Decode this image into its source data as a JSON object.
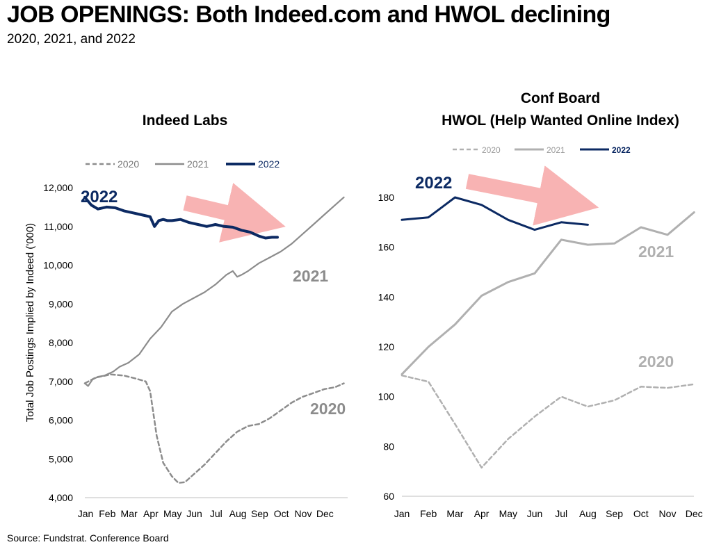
{
  "title": "JOB OPENINGS: Both Indeed.com and HWOL declining",
  "subtitle": "2020, 2021, and 2022",
  "source": "Source: Fundstrat. Conference Board",
  "colors": {
    "y2020": "#8c8c8c",
    "y2021": "#8c8c8c",
    "y2022": "#0c2a63",
    "arrow": "#f8b3b3",
    "y2020_hwol": "#b0b0b0",
    "y2021_hwol": "#b0b0b0"
  },
  "chart_data": [
    {
      "type": "line",
      "title": "Indeed Labs",
      "ylabel": "Total Job Postings Implied by Indeed ('000)",
      "ylim": [
        4000,
        12000
      ],
      "yticks": [
        "12,000",
        "11,000",
        "10,000",
        "9,000",
        "8,000",
        "7,000",
        "6,000",
        "5,000",
        "4,000"
      ],
      "ytick_values": [
        12000,
        11000,
        10000,
        9000,
        8000,
        7000,
        6000,
        5000,
        4000
      ],
      "months": [
        "Jan",
        "Feb",
        "Mar",
        "Apr",
        "May",
        "Jun",
        "Jul",
        "Aug",
        "Sep",
        "Oct",
        "Nov",
        "Dec"
      ],
      "legend": [
        "2020",
        "2021",
        "2022"
      ],
      "annotations": {
        "a2022": "2022",
        "a2021": "2021",
        "a2020": "2020"
      },
      "series": [
        {
          "name": "2020",
          "style": "dashed",
          "x": [
            0,
            0.5,
            1.2,
            1.8,
            2.3,
            2.8,
            3.0,
            3.3,
            3.6,
            4.0,
            4.3,
            4.6,
            5.0,
            5.5,
            6.0,
            6.5,
            7.0,
            7.5,
            8.0,
            8.5,
            9.0,
            9.5,
            10.0,
            10.5,
            11.0,
            11.5,
            11.9
          ],
          "y": [
            6950,
            7100,
            7180,
            7150,
            7080,
            7000,
            6750,
            5600,
            4900,
            4550,
            4380,
            4400,
            4600,
            4850,
            5150,
            5450,
            5700,
            5850,
            5900,
            6050,
            6250,
            6450,
            6600,
            6700,
            6800,
            6850,
            6950
          ]
        },
        {
          "name": "2021",
          "style": "solid",
          "x": [
            0,
            0.15,
            0.35,
            0.6,
            0.9,
            1.3,
            1.6,
            2.0,
            2.5,
            3.0,
            3.5,
            4.0,
            4.5,
            5.0,
            5.5,
            6.0,
            6.5,
            6.8,
            7.0,
            7.2,
            7.5,
            8.0,
            8.5,
            9.0,
            9.5,
            10.0,
            10.5,
            11.0,
            11.5,
            11.9
          ],
          "y": [
            6950,
            6880,
            7050,
            7120,
            7150,
            7250,
            7380,
            7480,
            7700,
            8100,
            8400,
            8800,
            9000,
            9150,
            9300,
            9500,
            9750,
            9850,
            9700,
            9750,
            9850,
            10050,
            10200,
            10350,
            10550,
            10800,
            11050,
            11300,
            11550,
            11750
          ]
        },
        {
          "name": "2022",
          "style": "bold",
          "x": [
            0,
            0.3,
            0.6,
            1.0,
            1.4,
            1.8,
            2.2,
            2.6,
            3.0,
            3.2,
            3.4,
            3.6,
            3.8,
            4.0,
            4.4,
            4.8,
            5.2,
            5.6,
            6.0,
            6.4,
            6.8,
            7.2,
            7.6,
            8.0,
            8.3,
            8.6,
            8.85
          ],
          "y": [
            11750,
            11550,
            11450,
            11500,
            11480,
            11400,
            11350,
            11300,
            11250,
            11000,
            11150,
            11180,
            11150,
            11150,
            11180,
            11100,
            11050,
            11000,
            11050,
            11000,
            10980,
            10900,
            10850,
            10750,
            10700,
            10720,
            10720
          ]
        }
      ]
    },
    {
      "type": "line",
      "title": "Conf Board",
      "title_line2": "HWOL (Help Wanted Online Index)",
      "ylim": [
        60,
        180
      ],
      "yticks": [
        "180",
        "160",
        "140",
        "120",
        "100",
        "80",
        "60"
      ],
      "ytick_values": [
        180,
        160,
        140,
        120,
        100,
        80,
        60
      ],
      "months": [
        "Jan",
        "Feb",
        "Mar",
        "Apr",
        "May",
        "Jun",
        "Jul",
        "Aug",
        "Sep",
        "Oct",
        "Nov",
        "Dec"
      ],
      "legend": [
        "2020",
        "2021",
        "2022"
      ],
      "annotations": {
        "a2022": "2022",
        "a2021": "2021",
        "a2020": "2020"
      },
      "series": [
        {
          "name": "2020",
          "style": "dashed",
          "x": [
            0,
            1,
            2,
            3,
            4,
            5,
            6,
            7,
            8,
            9,
            10,
            11
          ],
          "y": [
            108.5,
            106,
            89,
            71.5,
            83,
            92,
            100,
            96,
            98.5,
            104,
            103.5,
            105
          ]
        },
        {
          "name": "2021",
          "style": "solid",
          "x": [
            0,
            1,
            2,
            3,
            4,
            5,
            6,
            7,
            8,
            9,
            10,
            11
          ],
          "y": [
            109,
            120,
            129,
            140.5,
            146,
            149.5,
            163,
            161,
            161.5,
            168,
            165,
            174
          ]
        },
        {
          "name": "2022",
          "style": "bold",
          "x": [
            0,
            1,
            2,
            3,
            4,
            5,
            6,
            7
          ],
          "y": [
            171,
            172,
            180,
            177,
            171,
            167,
            170,
            169
          ]
        }
      ]
    }
  ]
}
